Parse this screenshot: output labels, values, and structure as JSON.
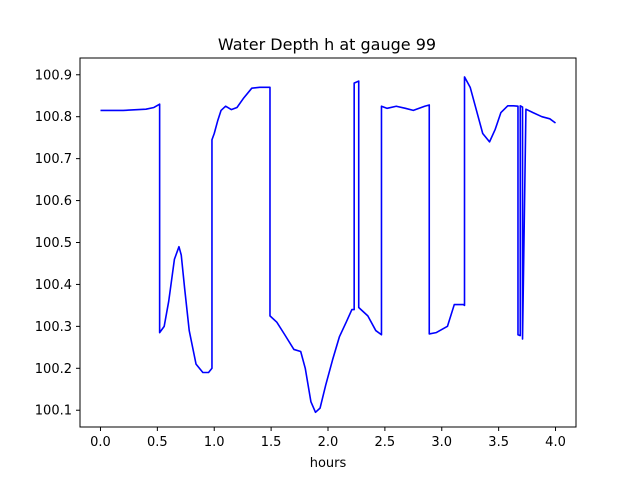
{
  "chart_data": {
    "type": "line",
    "title": "Water Depth h at gauge 99",
    "xlabel": "hours",
    "ylabel": "",
    "xlim": [
      -0.18,
      4.18
    ],
    "ylim": [
      100.06,
      100.94
    ],
    "x_ticks": [
      0.0,
      0.5,
      1.0,
      1.5,
      2.0,
      2.5,
      3.0,
      3.5,
      4.0
    ],
    "x_tick_labels": [
      "0.0",
      "0.5",
      "1.0",
      "1.5",
      "2.0",
      "2.5",
      "3.0",
      "3.5",
      "4.0"
    ],
    "y_ticks": [
      100.1,
      100.2,
      100.3,
      100.4,
      100.5,
      100.6,
      100.7,
      100.8,
      100.9
    ],
    "y_tick_labels": [
      "100.1",
      "100.2",
      "100.3",
      "100.4",
      "100.5",
      "100.6",
      "100.7",
      "100.8",
      "100.9"
    ],
    "grid": false,
    "series": [
      {
        "color": "#0000ff",
        "x": [
          0.0,
          0.2,
          0.4,
          0.47,
          0.52,
          0.52,
          0.56,
          0.6,
          0.65,
          0.69,
          0.71,
          0.74,
          0.78,
          0.84,
          0.9,
          0.95,
          0.98,
          0.98,
          1.0,
          1.03,
          1.06,
          1.1,
          1.15,
          1.2,
          1.26,
          1.33,
          1.4,
          1.45,
          1.49,
          1.49,
          1.55,
          1.62,
          1.7,
          1.76,
          1.8,
          1.85,
          1.89,
          1.93,
          1.98,
          2.04,
          2.1,
          2.16,
          2.21,
          2.23,
          2.23,
          2.27,
          2.27,
          2.35,
          2.42,
          2.47,
          2.47,
          2.52,
          2.6,
          2.68,
          2.75,
          2.85,
          2.89,
          2.89,
          2.95,
          3.05,
          3.11,
          3.19,
          3.2,
          3.2,
          3.25,
          3.3,
          3.36,
          3.42,
          3.47,
          3.52,
          3.58,
          3.63,
          3.67,
          3.67,
          3.69,
          3.69,
          3.71,
          3.71,
          3.74,
          3.8,
          3.88,
          3.95,
          4.0
        ],
        "y": [
          100.815,
          100.815,
          100.818,
          100.822,
          100.83,
          100.285,
          100.3,
          100.36,
          100.46,
          100.49,
          100.47,
          100.39,
          100.29,
          100.21,
          100.19,
          100.19,
          100.2,
          100.745,
          100.76,
          100.79,
          100.815,
          100.825,
          100.817,
          100.822,
          100.845,
          100.868,
          100.87,
          100.87,
          100.87,
          100.325,
          100.31,
          100.28,
          100.245,
          100.24,
          100.2,
          100.12,
          100.095,
          100.105,
          100.16,
          100.22,
          100.275,
          100.31,
          100.34,
          100.34,
          100.88,
          100.885,
          100.345,
          100.325,
          100.29,
          100.28,
          100.825,
          100.82,
          100.825,
          100.82,
          100.815,
          100.825,
          100.828,
          100.282,
          100.285,
          100.3,
          100.352,
          100.352,
          100.35,
          100.895,
          100.87,
          100.82,
          100.76,
          100.74,
          100.77,
          100.81,
          100.826,
          100.826,
          100.825,
          100.28,
          100.278,
          100.826,
          100.823,
          100.27,
          100.818,
          100.81,
          100.8,
          100.795,
          100.785
        ]
      }
    ]
  }
}
